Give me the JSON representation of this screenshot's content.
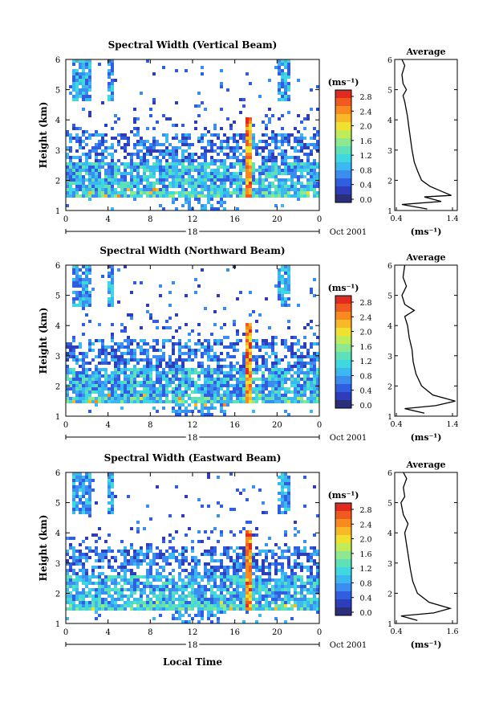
{
  "chart_data": [
    {
      "type": "heatmap",
      "title": "Spectral Width (Vertical Beam)",
      "ylabel": "Height (km)",
      "ylim": [
        1,
        6
      ],
      "yticks": [
        "1",
        "2",
        "3",
        "4",
        "5",
        "6"
      ],
      "xlim": [
        0,
        24
      ],
      "xticks": [
        "0",
        "4",
        "8",
        "12",
        "16",
        "20",
        "0"
      ],
      "day_label": "18",
      "date_label": "Oct 2001",
      "colorbar": {
        "unit": "(ms⁻¹)",
        "ticks": [
          "2.8",
          "2.4",
          "2.0",
          "1.6",
          "1.2",
          "0.8",
          "0.4",
          "0.0"
        ]
      },
      "average": {
        "title": "Average",
        "xlabel": "(ms⁻¹)",
        "xticks": [
          "0.4",
          "1.4"
        ],
        "xlim": [
          0.4,
          1.4
        ],
        "yticks": [
          "1",
          "2",
          "3",
          "4",
          "5",
          "6"
        ],
        "profile": [
          [
            1.05,
            0.95
          ],
          [
            1.2,
            0.5
          ],
          [
            1.3,
            1.2
          ],
          [
            1.45,
            0.9
          ],
          [
            1.5,
            1.38
          ],
          [
            1.6,
            1.25
          ],
          [
            1.8,
            1.0
          ],
          [
            2.0,
            0.85
          ],
          [
            2.3,
            0.78
          ],
          [
            2.6,
            0.72
          ],
          [
            3.0,
            0.68
          ],
          [
            3.4,
            0.65
          ],
          [
            3.8,
            0.62
          ],
          [
            4.1,
            0.6
          ],
          [
            4.3,
            0.58
          ],
          [
            4.6,
            0.55
          ],
          [
            4.8,
            0.52
          ],
          [
            5.0,
            0.58
          ],
          [
            5.2,
            0.52
          ],
          [
            5.5,
            0.5
          ],
          [
            5.8,
            0.55
          ],
          [
            6.0,
            0.5
          ]
        ]
      }
    },
    {
      "type": "heatmap",
      "title": "Spectral Width (Northward Beam)",
      "ylabel": "Height (km)",
      "ylim": [
        1,
        6
      ],
      "yticks": [
        "1",
        "2",
        "3",
        "4",
        "5",
        "6"
      ],
      "xlim": [
        0,
        24
      ],
      "xticks": [
        "0",
        "4",
        "8",
        "12",
        "16",
        "20",
        "0"
      ],
      "day_label": "18",
      "date_label": "Oct 2001",
      "colorbar": {
        "unit": "(ms⁻¹)",
        "ticks": [
          "2.8",
          "2.4",
          "2.0",
          "1.6",
          "1.2",
          "0.8",
          "0.4",
          "0.0"
        ]
      },
      "average": {
        "title": "Average",
        "xlabel": "(ms⁻¹)",
        "xticks": [
          "0.4",
          "1.4"
        ],
        "xlim": [
          0.4,
          1.4
        ],
        "yticks": [
          "1",
          "2",
          "3",
          "4",
          "5",
          "6"
        ],
        "profile": [
          [
            1.1,
            0.9
          ],
          [
            1.25,
            0.55
          ],
          [
            1.35,
            1.1
          ],
          [
            1.5,
            1.45
          ],
          [
            1.7,
            1.05
          ],
          [
            2.0,
            0.85
          ],
          [
            2.4,
            0.75
          ],
          [
            2.8,
            0.7
          ],
          [
            3.2,
            0.68
          ],
          [
            3.6,
            0.63
          ],
          [
            4.0,
            0.6
          ],
          [
            4.3,
            0.55
          ],
          [
            4.5,
            0.72
          ],
          [
            4.7,
            0.55
          ],
          [
            5.0,
            0.5
          ],
          [
            5.3,
            0.58
          ],
          [
            5.6,
            0.52
          ],
          [
            6.0,
            0.55
          ]
        ]
      }
    },
    {
      "type": "heatmap",
      "title": "Spectral Width (Eastward Beam)",
      "ylabel": "Height (km)",
      "ylim": [
        1,
        6
      ],
      "yticks": [
        "1",
        "2",
        "3",
        "4",
        "5",
        "6"
      ],
      "xlim": [
        0,
        24
      ],
      "xticks": [
        "0",
        "4",
        "8",
        "12",
        "16",
        "20",
        "0"
      ],
      "xlabel": "Local Time",
      "day_label": "18",
      "date_label": "Oct 2001",
      "colorbar": {
        "unit": "(ms⁻¹)",
        "ticks": [
          "2.8",
          "2.4",
          "2.0",
          "1.6",
          "1.2",
          "0.8",
          "0.4",
          "0.0"
        ]
      },
      "average": {
        "title": "Average",
        "xlabel": "(ms⁻¹)",
        "xticks": [
          "0.4",
          "1.6"
        ],
        "xlim": [
          0.4,
          1.6
        ],
        "yticks": [
          "1",
          "2",
          "3",
          "4",
          "5",
          "6"
        ],
        "profile": [
          [
            1.1,
            0.85
          ],
          [
            1.25,
            0.5
          ],
          [
            1.35,
            1.2
          ],
          [
            1.5,
            1.55
          ],
          [
            1.7,
            1.1
          ],
          [
            2.0,
            0.85
          ],
          [
            2.4,
            0.75
          ],
          [
            2.8,
            0.7
          ],
          [
            3.2,
            0.66
          ],
          [
            3.6,
            0.62
          ],
          [
            4.0,
            0.58
          ],
          [
            4.3,
            0.65
          ],
          [
            4.6,
            0.55
          ],
          [
            5.0,
            0.5
          ],
          [
            5.2,
            0.58
          ],
          [
            5.5,
            0.55
          ],
          [
            5.8,
            0.62
          ],
          [
            6.0,
            0.55
          ]
        ]
      }
    }
  ],
  "colors": {
    "scale": [
      "#2b2f7a",
      "#2e3db8",
      "#2f5fe0",
      "#3b8df0",
      "#3cb8f0",
      "#3fd8e0",
      "#5ee0b8",
      "#8ee890",
      "#c0ec5a",
      "#f0e030",
      "#f8b828",
      "#f88a20",
      "#f05a1e",
      "#e02a20"
    ],
    "profile_line": "#000000"
  }
}
